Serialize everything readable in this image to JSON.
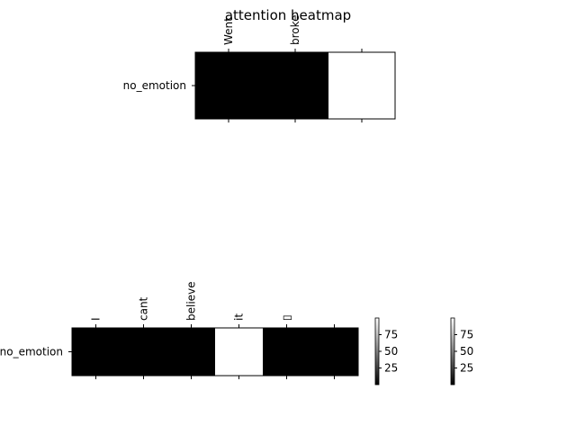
{
  "chart_data": [
    {
      "type": "heatmap",
      "title": "attention heatmap",
      "rows": [
        "no_emotion"
      ],
      "columns": [
        "Went",
        "broke",
        ""
      ],
      "values": [
        [
          0,
          0,
          100
        ]
      ],
      "colormap": "gray",
      "grid": false
    },
    {
      "type": "heatmap",
      "rows": [
        "no_emotion"
      ],
      "columns": [
        "I",
        "cant",
        "believe",
        "it",
        "▯",
        ""
      ],
      "values": [
        [
          0,
          0,
          0,
          100,
          0,
          0
        ]
      ],
      "colormap": "gray",
      "grid": false
    }
  ],
  "colorbars": [
    {
      "ticks": [
        25,
        50,
        75
      ],
      "range": [
        0,
        100
      ]
    },
    {
      "ticks": [
        25,
        50,
        75
      ],
      "range": [
        0,
        100
      ]
    }
  ]
}
